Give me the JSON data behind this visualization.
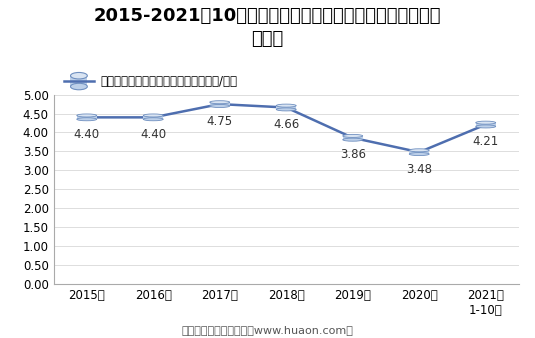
{
  "title_line1": "2015-2021年10月大连商品交易所线型低密度聚乙烯期货成",
  "title_line2": "交均价",
  "legend_label": "线型低密度聚乙烯期货成交均价（万元/手）",
  "x_labels": [
    "2015年",
    "2016年",
    "2017年",
    "2018年",
    "2019年",
    "2020年",
    "2021年"
  ],
  "x_label_last_extra": "1-10月",
  "y_values": [
    4.4,
    4.4,
    4.75,
    4.66,
    3.86,
    3.48,
    4.21
  ],
  "data_labels": [
    "4.40",
    "4.40",
    "4.75",
    "4.66",
    "3.86",
    "3.48",
    "4.21"
  ],
  "ylim": [
    0.0,
    5.0
  ],
  "yticks": [
    0.0,
    0.5,
    1.0,
    1.5,
    2.0,
    2.5,
    3.0,
    3.5,
    4.0,
    4.5,
    5.0
  ],
  "line_color": "#4E6EAF",
  "cyl_face_color": "#BDD0E9",
  "cyl_top_color": "#D9E4F2",
  "cyl_edge_color": "#7090C0",
  "bg_color": "#FFFFFF",
  "footer": "制图：华经产业研究院（www.huaon.com）",
  "title_fontsize": 13,
  "label_fontsize": 8.5,
  "tick_fontsize": 8.5,
  "legend_fontsize": 8.5,
  "footer_fontsize": 8
}
